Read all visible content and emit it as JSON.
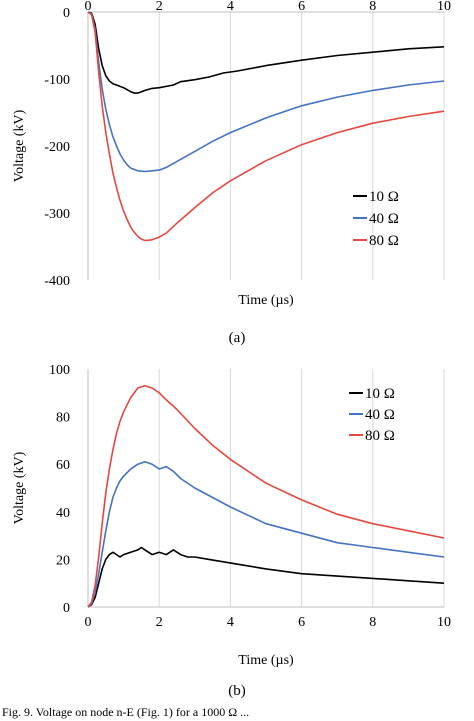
{
  "chart_data": [
    {
      "type": "line",
      "caption": "(a)",
      "xlabel": "Time (µs)",
      "ylabel": "Voltage (kV)",
      "xlim": [
        0,
        10
      ],
      "ylim": [
        -400,
        0
      ],
      "x_ticks": [
        "0",
        "2",
        "4",
        "6",
        "8",
        "10"
      ],
      "y_ticks": [
        "0",
        "-100",
        "-200",
        "-300",
        "-400"
      ],
      "grid": "vertical",
      "legend_position": "right",
      "series": [
        {
          "name": "10 Ω",
          "color": "#000000",
          "points": [
            [
              0,
              0
            ],
            [
              0.1,
              -2
            ],
            [
              0.2,
              -18
            ],
            [
              0.3,
              -55
            ],
            [
              0.4,
              -80
            ],
            [
              0.5,
              -95
            ],
            [
              0.6,
              -103
            ],
            [
              0.7,
              -107
            ],
            [
              0.8,
              -109
            ],
            [
              0.9,
              -111
            ],
            [
              1.0,
              -113
            ],
            [
              1.1,
              -116
            ],
            [
              1.2,
              -119
            ],
            [
              1.3,
              -121
            ],
            [
              1.4,
              -121
            ],
            [
              1.5,
              -119
            ],
            [
              1.6,
              -117
            ],
            [
              1.8,
              -114
            ],
            [
              2.0,
              -113
            ],
            [
              2.2,
              -111
            ],
            [
              2.4,
              -109
            ],
            [
              2.6,
              -104
            ],
            [
              3.0,
              -101
            ],
            [
              3.4,
              -97
            ],
            [
              3.8,
              -91
            ],
            [
              4.2,
              -88
            ],
            [
              5.0,
              -80
            ],
            [
              6.0,
              -72
            ],
            [
              7.0,
              -65
            ],
            [
              8.0,
              -60
            ],
            [
              9.0,
              -55
            ],
            [
              10.0,
              -52
            ]
          ]
        },
        {
          "name": "40 Ω",
          "color": "#4472C4",
          "points": [
            [
              0,
              0
            ],
            [
              0.1,
              -3
            ],
            [
              0.2,
              -25
            ],
            [
              0.3,
              -75
            ],
            [
              0.4,
              -115
            ],
            [
              0.5,
              -145
            ],
            [
              0.6,
              -168
            ],
            [
              0.7,
              -186
            ],
            [
              0.8,
              -200
            ],
            [
              0.9,
              -212
            ],
            [
              1.0,
              -221
            ],
            [
              1.1,
              -228
            ],
            [
              1.2,
              -233
            ],
            [
              1.4,
              -237
            ],
            [
              1.6,
              -238
            ],
            [
              1.8,
              -237
            ],
            [
              2.0,
              -236
            ],
            [
              2.2,
              -232
            ],
            [
              2.5,
              -223
            ],
            [
              3.0,
              -208
            ],
            [
              3.5,
              -193
            ],
            [
              4.0,
              -180
            ],
            [
              5.0,
              -158
            ],
            [
              6.0,
              -140
            ],
            [
              7.0,
              -127
            ],
            [
              8.0,
              -117
            ],
            [
              9.0,
              -109
            ],
            [
              10.0,
              -103
            ]
          ]
        },
        {
          "name": "80 Ω",
          "color": "#E8473F",
          "points": [
            [
              0,
              0
            ],
            [
              0.1,
              -4
            ],
            [
              0.2,
              -30
            ],
            [
              0.3,
              -90
            ],
            [
              0.4,
              -140
            ],
            [
              0.5,
              -180
            ],
            [
              0.6,
              -212
            ],
            [
              0.7,
              -240
            ],
            [
              0.8,
              -262
            ],
            [
              0.9,
              -281
            ],
            [
              1.0,
              -297
            ],
            [
              1.1,
              -310
            ],
            [
              1.2,
              -321
            ],
            [
              1.3,
              -329
            ],
            [
              1.4,
              -335
            ],
            [
              1.5,
              -339
            ],
            [
              1.6,
              -341
            ],
            [
              1.8,
              -340
            ],
            [
              2.0,
              -336
            ],
            [
              2.2,
              -330
            ],
            [
              2.5,
              -315
            ],
            [
              3.0,
              -292
            ],
            [
              3.5,
              -270
            ],
            [
              4.0,
              -252
            ],
            [
              5.0,
              -222
            ],
            [
              6.0,
              -198
            ],
            [
              7.0,
              -180
            ],
            [
              8.0,
              -166
            ],
            [
              9.0,
              -156
            ],
            [
              10.0,
              -148
            ]
          ]
        }
      ]
    },
    {
      "type": "line",
      "caption": "(b)",
      "xlabel": "Time (µs)",
      "ylabel": "Voltage (kV)",
      "xlim": [
        0,
        10
      ],
      "ylim": [
        0,
        100
      ],
      "x_ticks": [
        "0",
        "2",
        "4",
        "6",
        "8",
        "10"
      ],
      "y_ticks": [
        "0",
        "20",
        "40",
        "60",
        "80",
        "100"
      ],
      "grid": "vertical",
      "legend_position": "top-right",
      "series": [
        {
          "name": "10 Ω",
          "color": "#000000",
          "points": [
            [
              0,
              0
            ],
            [
              0.1,
              1
            ],
            [
              0.2,
              4
            ],
            [
              0.3,
              10
            ],
            [
              0.4,
              16
            ],
            [
              0.5,
              20
            ],
            [
              0.6,
              22
            ],
            [
              0.7,
              23
            ],
            [
              0.8,
              22
            ],
            [
              0.9,
              21
            ],
            [
              1.0,
              22
            ],
            [
              1.2,
              23
            ],
            [
              1.4,
              24
            ],
            [
              1.5,
              25
            ],
            [
              1.6,
              24
            ],
            [
              1.8,
              22
            ],
            [
              2.0,
              23
            ],
            [
              2.2,
              22
            ],
            [
              2.4,
              24
            ],
            [
              2.6,
              22
            ],
            [
              2.8,
              21
            ],
            [
              3.0,
              21
            ],
            [
              3.4,
              20
            ],
            [
              3.8,
              19
            ],
            [
              4.2,
              18
            ],
            [
              5.0,
              16
            ],
            [
              6.0,
              14
            ],
            [
              7.0,
              13
            ],
            [
              8.0,
              12
            ],
            [
              9.0,
              11
            ],
            [
              10.0,
              10
            ]
          ]
        },
        {
          "name": "40 Ω",
          "color": "#4472C4",
          "points": [
            [
              0,
              0
            ],
            [
              0.1,
              1.5
            ],
            [
              0.2,
              6
            ],
            [
              0.3,
              14
            ],
            [
              0.4,
              23
            ],
            [
              0.5,
              32
            ],
            [
              0.6,
              40
            ],
            [
              0.7,
              46
            ],
            [
              0.8,
              50
            ],
            [
              0.9,
              53
            ],
            [
              1.0,
              55
            ],
            [
              1.2,
              58
            ],
            [
              1.4,
              60
            ],
            [
              1.6,
              61
            ],
            [
              1.8,
              60
            ],
            [
              2.0,
              58
            ],
            [
              2.2,
              59
            ],
            [
              2.4,
              57
            ],
            [
              2.6,
              54
            ],
            [
              3.0,
              50
            ],
            [
              3.5,
              46
            ],
            [
              4.0,
              42
            ],
            [
              5.0,
              35
            ],
            [
              6.0,
              31
            ],
            [
              7.0,
              27
            ],
            [
              8.0,
              25
            ],
            [
              9.0,
              23
            ],
            [
              10.0,
              21
            ]
          ]
        },
        {
          "name": "80 Ω",
          "color": "#E8473F",
          "points": [
            [
              0,
              0
            ],
            [
              0.1,
              2
            ],
            [
              0.2,
              9
            ],
            [
              0.3,
              21
            ],
            [
              0.4,
              35
            ],
            [
              0.5,
              48
            ],
            [
              0.6,
              58
            ],
            [
              0.7,
              66
            ],
            [
              0.8,
              73
            ],
            [
              0.9,
              78
            ],
            [
              1.0,
              82
            ],
            [
              1.2,
              88
            ],
            [
              1.4,
              92
            ],
            [
              1.6,
              93
            ],
            [
              1.8,
              92
            ],
            [
              2.0,
              90
            ],
            [
              2.2,
              87
            ],
            [
              2.5,
              83
            ],
            [
              3.0,
              75
            ],
            [
              3.5,
              68
            ],
            [
              4.0,
              62
            ],
            [
              5.0,
              52
            ],
            [
              6.0,
              45
            ],
            [
              7.0,
              39
            ],
            [
              8.0,
              35
            ],
            [
              9.0,
              32
            ],
            [
              10.0,
              29
            ]
          ]
        }
      ]
    }
  ],
  "footer_text": "Fig. 9. Voltage on node n-E (Fig. 1) for a 1000 Ω ..."
}
